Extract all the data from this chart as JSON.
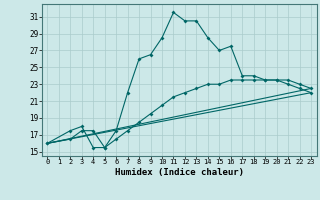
{
  "title": "",
  "xlabel": "Humidex (Indice chaleur)",
  "bg_color": "#cce8e8",
  "grid_color": "#aacccc",
  "line_color": "#006666",
  "xlim": [
    -0.5,
    23.5
  ],
  "ylim": [
    14.5,
    32.5
  ],
  "yticks": [
    15,
    17,
    19,
    21,
    23,
    25,
    27,
    29,
    31
  ],
  "xticks": [
    0,
    1,
    2,
    3,
    4,
    5,
    6,
    7,
    8,
    9,
    10,
    11,
    12,
    13,
    14,
    15,
    16,
    17,
    18,
    19,
    20,
    21,
    22,
    23
  ],
  "series1_x": [
    0,
    2,
    3,
    4,
    5,
    6,
    7,
    8,
    9,
    10,
    11,
    12,
    13,
    14,
    15,
    16,
    17,
    18,
    19,
    20,
    21,
    22,
    23
  ],
  "series1_y": [
    16.0,
    17.5,
    18.0,
    15.5,
    15.5,
    17.5,
    22.0,
    26.0,
    26.5,
    28.5,
    31.5,
    30.5,
    30.5,
    28.5,
    27.0,
    27.5,
    24.0,
    24.0,
    23.5,
    23.5,
    23.0,
    22.5,
    22.0
  ],
  "series2_x": [
    0,
    2,
    3,
    4,
    5,
    6,
    7,
    8,
    9,
    10,
    11,
    12,
    13,
    14,
    15,
    16,
    17,
    18,
    19,
    20,
    21,
    22,
    23
  ],
  "series2_y": [
    16.0,
    16.5,
    17.5,
    17.5,
    15.5,
    16.5,
    17.5,
    18.5,
    19.5,
    20.5,
    21.5,
    22.0,
    22.5,
    23.0,
    23.0,
    23.5,
    23.5,
    23.5,
    23.5,
    23.5,
    23.5,
    23.0,
    22.5
  ],
  "series3_x": [
    0,
    23
  ],
  "series3_y": [
    16.0,
    22.0
  ],
  "series4_x": [
    0,
    23
  ],
  "series4_y": [
    16.0,
    22.5
  ]
}
